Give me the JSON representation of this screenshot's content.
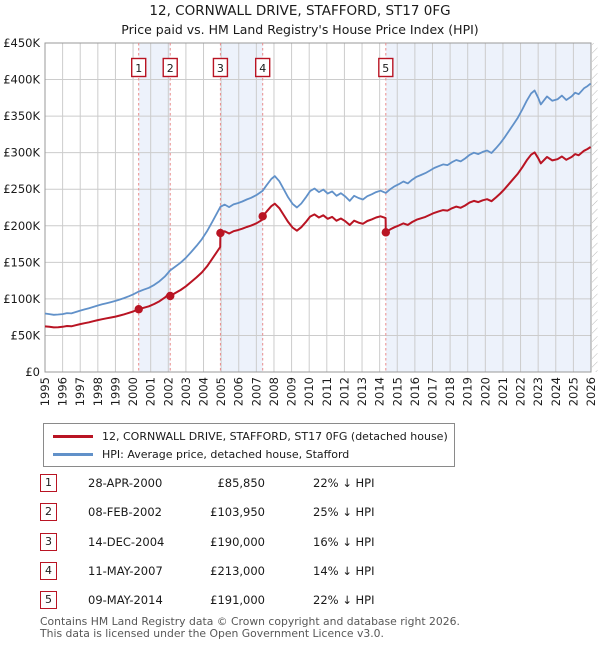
{
  "title": "12, CORNWALL DRIVE, STAFFORD, ST17 0FG",
  "subtitle": "Price paid vs. HM Land Registry's House Price Index (HPI)",
  "chart_data": {
    "type": "line",
    "title": "12, CORNWALL DRIVE, STAFFORD, ST17 0FG",
    "xlabel": "",
    "ylabel": "",
    "xlim": [
      1995,
      2026
    ],
    "ylim": [
      0,
      450000
    ],
    "ytick_step": 50000,
    "ytick_labels": [
      "£0",
      "£50K",
      "£100K",
      "£150K",
      "£200K",
      "£250K",
      "£300K",
      "£350K",
      "£400K",
      "£450K"
    ],
    "years": [
      1995,
      1996,
      1997,
      1998,
      1999,
      2000,
      2001,
      2002,
      2003,
      2004,
      2005,
      2006,
      2007,
      2008,
      2009,
      2010,
      2011,
      2012,
      2013,
      2014,
      2015,
      2016,
      2017,
      2018,
      2019,
      2020,
      2021,
      2022,
      2023,
      2024,
      2025,
      2026
    ],
    "grid": true,
    "legend_position": "bottom-left-box",
    "colors": {
      "property": "#b91423",
      "hpi": "#6191c9",
      "band": "#edf2fb",
      "grid": "#cccccc",
      "border": "#999999",
      "sale_dash": "#e98c8c",
      "hatch": "#b8b8b8"
    },
    "ownership_bands": [
      [
        2000.32,
        2002.11
      ],
      [
        2004.96,
        2007.36
      ],
      [
        2014.35,
        2026
      ]
    ],
    "sales": [
      {
        "label": "1",
        "date": "28-APR-2000",
        "year": 2000.32,
        "price": 85850
      },
      {
        "label": "2",
        "date": "08-FEB-2002",
        "year": 2002.11,
        "price": 103950
      },
      {
        "label": "3",
        "date": "14-DEC-2004",
        "year": 2004.96,
        "price": 190000
      },
      {
        "label": "4",
        "date": "11-MAY-2007",
        "year": 2007.36,
        "price": 213000
      },
      {
        "label": "5",
        "date": "09-MAY-2014",
        "year": 2014.35,
        "price": 191000
      }
    ],
    "series": [
      {
        "name": "12, CORNWALL DRIVE, STAFFORD, ST17 0FG (detached house)",
        "color": "#b91423",
        "points": [
          [
            1995.0,
            62400
          ],
          [
            1995.25,
            61800
          ],
          [
            1995.5,
            61000
          ],
          [
            1995.75,
            61300
          ],
          [
            1996.0,
            61800
          ],
          [
            1996.25,
            62900
          ],
          [
            1996.5,
            62500
          ],
          [
            1996.75,
            64000
          ],
          [
            1997.0,
            65500
          ],
          [
            1997.25,
            66800
          ],
          [
            1997.5,
            68000
          ],
          [
            1997.75,
            69500
          ],
          [
            1998.0,
            71000
          ],
          [
            1998.25,
            72200
          ],
          [
            1998.5,
            73400
          ],
          [
            1998.75,
            74600
          ],
          [
            1999.0,
            75800
          ],
          [
            1999.25,
            77300
          ],
          [
            1999.5,
            78900
          ],
          [
            1999.75,
            80800
          ],
          [
            2000.0,
            82800
          ],
          [
            2000.32,
            85850
          ],
          [
            2000.6,
            87800
          ],
          [
            2000.9,
            89900
          ],
          [
            2001.2,
            93000
          ],
          [
            2001.5,
            96900
          ],
          [
            2001.8,
            101800
          ],
          [
            2002.1,
            108400
          ],
          [
            2002.11,
            103950
          ],
          [
            2002.4,
            108100
          ],
          [
            2002.7,
            112100
          ],
          [
            2003.0,
            117200
          ],
          [
            2003.3,
            123200
          ],
          [
            2003.6,
            129400
          ],
          [
            2003.9,
            136100
          ],
          [
            2004.2,
            144400
          ],
          [
            2004.5,
            155000
          ],
          [
            2004.95,
            171000
          ],
          [
            2004.96,
            190000
          ],
          [
            2005.2,
            192500
          ],
          [
            2005.45,
            189500
          ],
          [
            2005.7,
            192600
          ],
          [
            2005.95,
            194100
          ],
          [
            2006.2,
            196000
          ],
          [
            2006.45,
            198300
          ],
          [
            2006.7,
            200200
          ],
          [
            2007.0,
            203400
          ],
          [
            2007.35,
            208300
          ],
          [
            2007.36,
            213000
          ],
          [
            2007.6,
            219900
          ],
          [
            2007.85,
            226800
          ],
          [
            2008.05,
            230200
          ],
          [
            2008.3,
            224200
          ],
          [
            2008.55,
            214800
          ],
          [
            2008.8,
            205300
          ],
          [
            2009.05,
            197600
          ],
          [
            2009.3,
            193300
          ],
          [
            2009.55,
            198000
          ],
          [
            2009.8,
            204900
          ],
          [
            2010.05,
            212600
          ],
          [
            2010.3,
            215600
          ],
          [
            2010.55,
            211300
          ],
          [
            2010.8,
            214300
          ],
          [
            2011.05,
            209600
          ],
          [
            2011.3,
            212200
          ],
          [
            2011.55,
            207000
          ],
          [
            2011.8,
            210000
          ],
          [
            2012.05,
            206200
          ],
          [
            2012.3,
            201000
          ],
          [
            2012.55,
            207000
          ],
          [
            2012.8,
            204400
          ],
          [
            2013.05,
            202700
          ],
          [
            2013.3,
            206600
          ],
          [
            2013.55,
            208700
          ],
          [
            2013.8,
            211300
          ],
          [
            2014.05,
            213000
          ],
          [
            2014.34,
            210500
          ],
          [
            2014.35,
            191000
          ],
          [
            2014.6,
            195000
          ],
          [
            2014.85,
            198100
          ],
          [
            2015.1,
            200500
          ],
          [
            2015.35,
            203200
          ],
          [
            2015.6,
            201200
          ],
          [
            2015.85,
            205100
          ],
          [
            2016.1,
            208300
          ],
          [
            2016.35,
            210200
          ],
          [
            2016.6,
            212200
          ],
          [
            2016.85,
            214900
          ],
          [
            2017.1,
            217600
          ],
          [
            2017.35,
            219600
          ],
          [
            2017.6,
            221500
          ],
          [
            2017.85,
            220700
          ],
          [
            2018.1,
            223900
          ],
          [
            2018.35,
            226200
          ],
          [
            2018.6,
            224600
          ],
          [
            2018.85,
            227800
          ],
          [
            2019.1,
            231700
          ],
          [
            2019.35,
            234000
          ],
          [
            2019.6,
            232400
          ],
          [
            2019.85,
            234800
          ],
          [
            2020.1,
            236300
          ],
          [
            2020.35,
            233600
          ],
          [
            2020.6,
            238700
          ],
          [
            2020.85,
            244100
          ],
          [
            2021.1,
            250400
          ],
          [
            2021.35,
            257400
          ],
          [
            2021.6,
            264400
          ],
          [
            2021.85,
            271400
          ],
          [
            2022.1,
            280000
          ],
          [
            2022.35,
            289400
          ],
          [
            2022.6,
            297200
          ],
          [
            2022.8,
            300300
          ],
          [
            2023.0,
            292500
          ],
          [
            2023.15,
            285500
          ],
          [
            2023.5,
            294100
          ],
          [
            2023.8,
            289400
          ],
          [
            2024.1,
            291000
          ],
          [
            2024.35,
            294800
          ],
          [
            2024.6,
            290200
          ],
          [
            2024.9,
            294100
          ],
          [
            2025.1,
            298000
          ],
          [
            2025.3,
            296400
          ],
          [
            2025.6,
            302600
          ],
          [
            2025.8,
            305000
          ],
          [
            2025.98,
            307700
          ]
        ]
      },
      {
        "name": "HPI: Average price, detached house, Stafford",
        "color": "#6191c9",
        "points": [
          [
            1995.0,
            80000
          ],
          [
            1995.25,
            79200
          ],
          [
            1995.5,
            78200
          ],
          [
            1995.75,
            78600
          ],
          [
            1996.0,
            79200
          ],
          [
            1996.25,
            80600
          ],
          [
            1996.5,
            80100
          ],
          [
            1996.75,
            82000
          ],
          [
            1997.0,
            84000
          ],
          [
            1997.25,
            85600
          ],
          [
            1997.5,
            87200
          ],
          [
            1997.75,
            89100
          ],
          [
            1998.0,
            91000
          ],
          [
            1998.25,
            92600
          ],
          [
            1998.5,
            94100
          ],
          [
            1998.75,
            95600
          ],
          [
            1999.0,
            97200
          ],
          [
            1999.25,
            99100
          ],
          [
            1999.5,
            101200
          ],
          [
            1999.75,
            103600
          ],
          [
            2000.0,
            106200
          ],
          [
            2000.32,
            110000
          ],
          [
            2000.6,
            112600
          ],
          [
            2000.9,
            115200
          ],
          [
            2001.2,
            119200
          ],
          [
            2001.5,
            124200
          ],
          [
            2001.8,
            130500
          ],
          [
            2002.11,
            139000
          ],
          [
            2002.4,
            144200
          ],
          [
            2002.7,
            149500
          ],
          [
            2003.0,
            156200
          ],
          [
            2003.3,
            164200
          ],
          [
            2003.6,
            172500
          ],
          [
            2003.9,
            181500
          ],
          [
            2004.2,
            192500
          ],
          [
            2004.5,
            205500
          ],
          [
            2004.96,
            226000
          ],
          [
            2005.2,
            229000
          ],
          [
            2005.45,
            225500
          ],
          [
            2005.7,
            229200
          ],
          [
            2005.95,
            231000
          ],
          [
            2006.2,
            233200
          ],
          [
            2006.45,
            236000
          ],
          [
            2006.7,
            238200
          ],
          [
            2007.0,
            242000
          ],
          [
            2007.36,
            248000
          ],
          [
            2007.6,
            256000
          ],
          [
            2007.85,
            264000
          ],
          [
            2008.05,
            268000
          ],
          [
            2008.3,
            261000
          ],
          [
            2008.55,
            250000
          ],
          [
            2008.8,
            239000
          ],
          [
            2009.05,
            230000
          ],
          [
            2009.3,
            225000
          ],
          [
            2009.55,
            230500
          ],
          [
            2009.8,
            238500
          ],
          [
            2010.05,
            247500
          ],
          [
            2010.3,
            251000
          ],
          [
            2010.55,
            246000
          ],
          [
            2010.8,
            249500
          ],
          [
            2011.05,
            244000
          ],
          [
            2011.3,
            247000
          ],
          [
            2011.55,
            241000
          ],
          [
            2011.8,
            244500
          ],
          [
            2012.05,
            240000
          ],
          [
            2012.3,
            234000
          ],
          [
            2012.55,
            241000
          ],
          [
            2012.8,
            238000
          ],
          [
            2013.05,
            236000
          ],
          [
            2013.3,
            240500
          ],
          [
            2013.55,
            243000
          ],
          [
            2013.8,
            246000
          ],
          [
            2014.05,
            248000
          ],
          [
            2014.35,
            245000
          ],
          [
            2014.6,
            250000
          ],
          [
            2014.85,
            254000
          ],
          [
            2015.1,
            257000
          ],
          [
            2015.35,
            260500
          ],
          [
            2015.6,
            258000
          ],
          [
            2015.85,
            263000
          ],
          [
            2016.1,
            267000
          ],
          [
            2016.35,
            269500
          ],
          [
            2016.6,
            272000
          ],
          [
            2016.85,
            275500
          ],
          [
            2017.1,
            279000
          ],
          [
            2017.35,
            281500
          ],
          [
            2017.6,
            284000
          ],
          [
            2017.85,
            283000
          ],
          [
            2018.1,
            287000
          ],
          [
            2018.35,
            290000
          ],
          [
            2018.6,
            288000
          ],
          [
            2018.85,
            292000
          ],
          [
            2019.1,
            297000
          ],
          [
            2019.35,
            300000
          ],
          [
            2019.6,
            298000
          ],
          [
            2019.85,
            301000
          ],
          [
            2020.1,
            303000
          ],
          [
            2020.35,
            299500
          ],
          [
            2020.6,
            306000
          ],
          [
            2020.85,
            313000
          ],
          [
            2021.1,
            321000
          ],
          [
            2021.35,
            330000
          ],
          [
            2021.6,
            339000
          ],
          [
            2021.85,
            348000
          ],
          [
            2022.1,
            359000
          ],
          [
            2022.35,
            371000
          ],
          [
            2022.6,
            381000
          ],
          [
            2022.8,
            385000
          ],
          [
            2023.0,
            375000
          ],
          [
            2023.15,
            366000
          ],
          [
            2023.5,
            377000
          ],
          [
            2023.8,
            371000
          ],
          [
            2024.1,
            373000
          ],
          [
            2024.35,
            378000
          ],
          [
            2024.6,
            372000
          ],
          [
            2024.9,
            377000
          ],
          [
            2025.1,
            382000
          ],
          [
            2025.3,
            380000
          ],
          [
            2025.6,
            388000
          ],
          [
            2025.8,
            391000
          ],
          [
            2025.98,
            394500
          ]
        ]
      }
    ]
  },
  "table": {
    "rows": [
      {
        "num": "1",
        "date": "28-APR-2000",
        "price": "£85,850",
        "vs_hpi": "22% ↓ HPI"
      },
      {
        "num": "2",
        "date": "08-FEB-2002",
        "price": "£103,950",
        "vs_hpi": "25% ↓ HPI"
      },
      {
        "num": "3",
        "date": "14-DEC-2004",
        "price": "£190,000",
        "vs_hpi": "16% ↓ HPI"
      },
      {
        "num": "4",
        "date": "11-MAY-2007",
        "price": "£213,000",
        "vs_hpi": "14% ↓ HPI"
      },
      {
        "num": "5",
        "date": "09-MAY-2014",
        "price": "£191,000",
        "vs_hpi": "22% ↓ HPI"
      }
    ]
  },
  "footer": {
    "line1": "Contains HM Land Registry data © Crown copyright and database right 2026.",
    "line2": "This data is licensed under the Open Government Licence v3.0."
  }
}
